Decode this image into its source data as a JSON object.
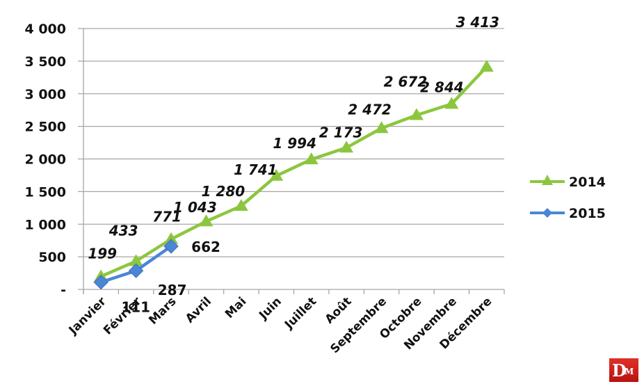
{
  "chart_data": {
    "type": "line",
    "title": "",
    "xlabel": "",
    "ylabel": "",
    "ylim": [
      0,
      4000
    ],
    "y_ticks": [
      {
        "value": 0,
        "label": "-"
      },
      {
        "value": 500,
        "label": "500"
      },
      {
        "value": 1000,
        "label": "1 000"
      },
      {
        "value": 1500,
        "label": "1 500"
      },
      {
        "value": 2000,
        "label": "2 000"
      },
      {
        "value": 2500,
        "label": "2 500"
      },
      {
        "value": 3000,
        "label": "3 000"
      },
      {
        "value": 3500,
        "label": "3 500"
      },
      {
        "value": 4000,
        "label": "4 000"
      }
    ],
    "grid": "horizontal",
    "legend_position": "right",
    "categories": [
      "Janvier",
      "Février",
      "Mars",
      "Avril",
      "Mai",
      "Juin",
      "Juillet",
      "Août",
      "Septembre",
      "Octobre",
      "Novembre",
      "Décembre"
    ],
    "series": [
      {
        "name": "2014",
        "color": "#8cc63f",
        "marker": "triangle",
        "values": [
          199,
          433,
          771,
          1043,
          1280,
          1741,
          1994,
          2173,
          2472,
          2672,
          2844,
          3413
        ],
        "labels": [
          "199",
          "433",
          "771",
          "1 043",
          "1 280",
          "1 741",
          "1 994",
          "2 173",
          "2 472",
          "2 672",
          "2 844",
          "3 413"
        ]
      },
      {
        "name": "2015",
        "color": "#4a86d8",
        "marker": "diamond",
        "values": [
          111,
          287,
          662
        ],
        "labels": [
          "111",
          "287",
          "662"
        ]
      }
    ]
  },
  "logo": {
    "main": "D",
    "sub": "M",
    "color": "#d42a22"
  }
}
